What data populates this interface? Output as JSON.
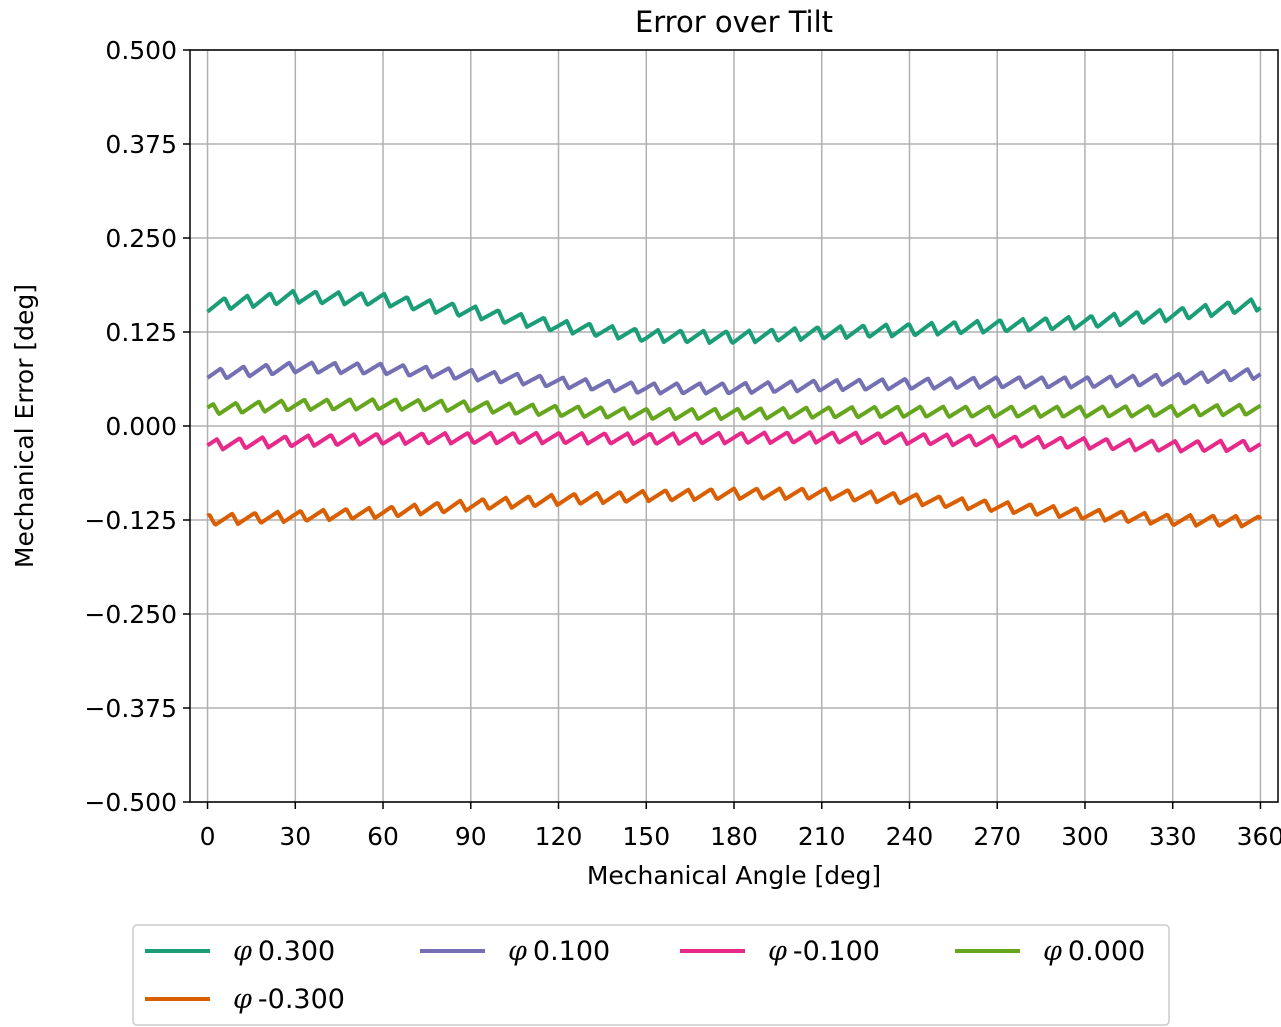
{
  "chart_data": {
    "type": "line",
    "title": "Error over Tilt",
    "xlabel": "Mechanical Angle [deg]",
    "ylabel": "Mechanical Error [deg]",
    "xlim": [
      -6,
      366
    ],
    "ylim": [
      -0.5,
      0.5
    ],
    "xticks": [
      0,
      30,
      60,
      90,
      120,
      150,
      180,
      210,
      240,
      270,
      300,
      330,
      360
    ],
    "xtick_labels": [
      "0",
      "30",
      "60",
      "90",
      "120",
      "150",
      "180",
      "210",
      "240",
      "270",
      "300",
      "330",
      "360"
    ],
    "yticks": [
      0.5,
      0.375,
      0.25,
      0.125,
      0.0,
      -0.125,
      -0.25,
      -0.375,
      -0.5
    ],
    "ytick_labels": [
      "0.500",
      "0.375",
      "0.250",
      "0.125",
      "0.000",
      "−0.125",
      "−0.250",
      "−0.375",
      "−0.500"
    ],
    "grid": true,
    "legend_placement": "below",
    "x": [
      0,
      30,
      60,
      90,
      120,
      150,
      180,
      210,
      240,
      270,
      300,
      330,
      360
    ],
    "series": [
      {
        "name": "0.300",
        "color": "#1b9e77",
        "values": [
          0.16,
          0.172,
          0.168,
          0.152,
          0.133,
          0.12,
          0.118,
          0.124,
          0.128,
          0.133,
          0.138,
          0.148,
          0.162
        ],
        "ripple_amplitude": 0.008
      },
      {
        "name": "0.100",
        "color": "#7570b3",
        "values": [
          0.068,
          0.078,
          0.076,
          0.068,
          0.058,
          0.05,
          0.05,
          0.054,
          0.056,
          0.058,
          0.058,
          0.062,
          0.07
        ],
        "ripple_amplitude": 0.007
      },
      {
        "name": "-0.100",
        "color": "#e7298a",
        "values": [
          -0.025,
          -0.02,
          -0.017,
          -0.016,
          -0.016,
          -0.017,
          -0.016,
          -0.015,
          -0.017,
          -0.02,
          -0.023,
          -0.027,
          -0.026
        ],
        "ripple_amplitude": 0.007
      },
      {
        "name": "0.000",
        "color": "#66a61e",
        "values": [
          0.022,
          0.028,
          0.029,
          0.026,
          0.02,
          0.016,
          0.016,
          0.018,
          0.019,
          0.019,
          0.019,
          0.02,
          0.022
        ],
        "ripple_amplitude": 0.007
      },
      {
        "name": "-0.300",
        "color": "#d95f02",
        "values": [
          -0.125,
          -0.12,
          -0.115,
          -0.105,
          -0.098,
          -0.093,
          -0.09,
          -0.09,
          -0.097,
          -0.107,
          -0.117,
          -0.125,
          -0.127
        ],
        "ripple_amplitude": 0.007
      }
    ],
    "ripple_period_deg": 7.8,
    "legend": {
      "symbol": "φ",
      "order": [
        0,
        1,
        2,
        3,
        4
      ]
    }
  }
}
